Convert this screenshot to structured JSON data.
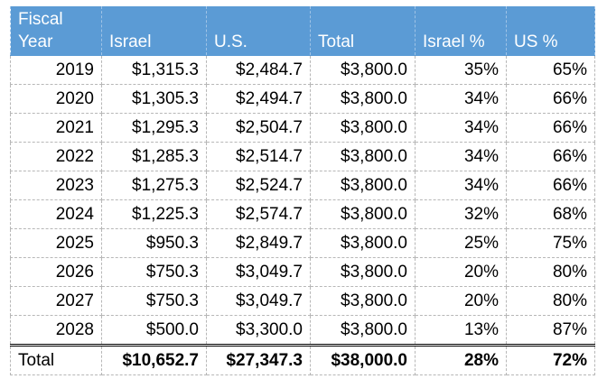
{
  "table": {
    "headers": [
      "Fiscal\nYear",
      "Israel",
      "U.S.",
      "Total",
      "Israel %",
      "US %"
    ],
    "rows": [
      [
        "2019",
        "$1,315.3",
        "$2,484.7",
        "$3,800.0",
        "35%",
        "65%"
      ],
      [
        "2020",
        "$1,305.3",
        "$2,494.7",
        "$3,800.0",
        "34%",
        "66%"
      ],
      [
        "2021",
        "$1,295.3",
        "$2,504.7",
        "$3,800.0",
        "34%",
        "66%"
      ],
      [
        "2022",
        "$1,285.3",
        "$2,514.7",
        "$3,800.0",
        "34%",
        "66%"
      ],
      [
        "2023",
        "$1,275.3",
        "$2,524.7",
        "$3,800.0",
        "34%",
        "66%"
      ],
      [
        "2024",
        "$1,225.3",
        "$2,574.7",
        "$3,800.0",
        "32%",
        "68%"
      ],
      [
        "2025",
        "$950.3",
        "$2,849.7",
        "$3,800.0",
        "25%",
        "75%"
      ],
      [
        "2026",
        "$750.3",
        "$3,049.7",
        "$3,800.0",
        "20%",
        "80%"
      ],
      [
        "2027",
        "$750.3",
        "$3,049.7",
        "$3,800.0",
        "20%",
        "80%"
      ],
      [
        "2028",
        "$500.0",
        "$3,300.0",
        "$3,800.0",
        "13%",
        "87%"
      ]
    ],
    "total_row": [
      "Total",
      "$10,652.7",
      "$27,347.3",
      "$38,000.0",
      "28%",
      "72%"
    ]
  },
  "colors": {
    "header_bg": "#5b9bd5",
    "header_text": "#ffffff"
  }
}
